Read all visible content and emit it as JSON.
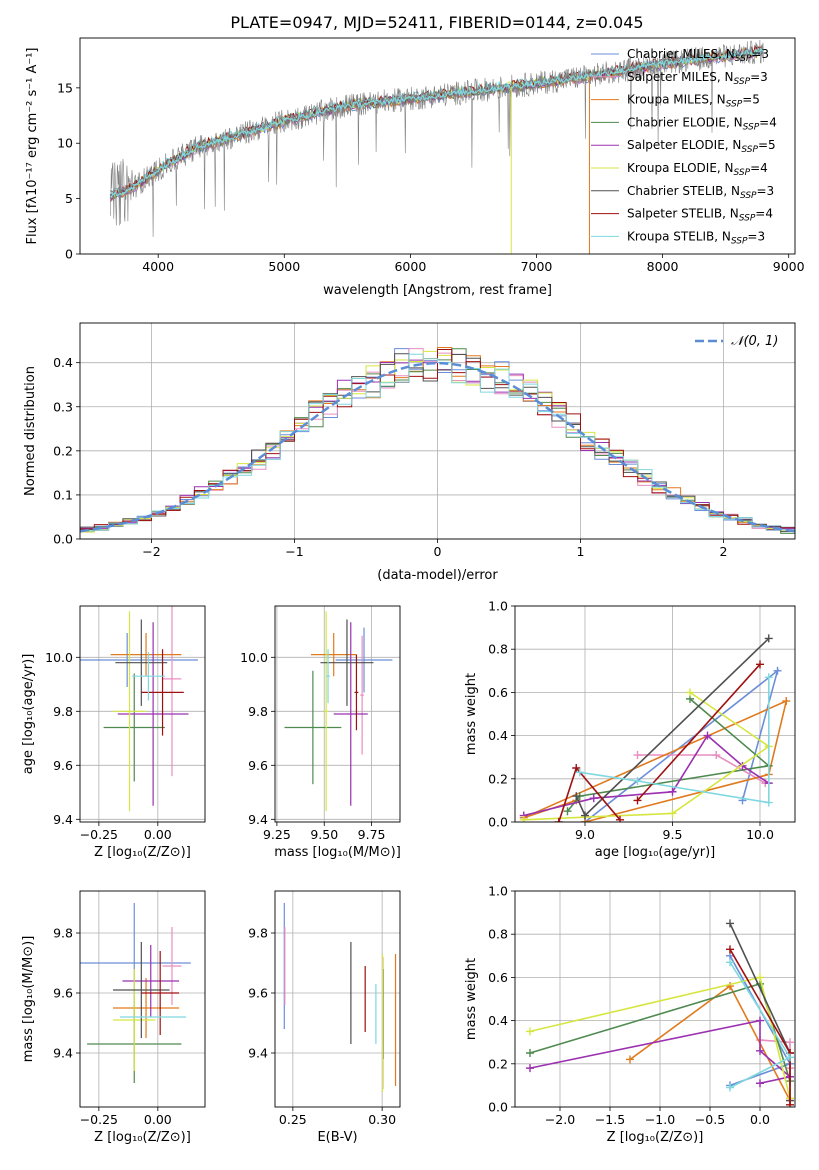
{
  "figure_title": "PLATE=0947, MJD=52411, FIBERID=0144, z=0.045",
  "chart_data": [
    {
      "id": "spectrum",
      "type": "line",
      "xlabel": "wavelength [Angstrom, rest frame]",
      "ylabel": "Flux [fλ10⁻¹⁷ erg cm⁻² s⁻¹ A⁻¹]",
      "xlim": [
        3380,
        9050
      ],
      "ylim": [
        0,
        19.5
      ],
      "xticks": [
        4000,
        5000,
        6000,
        7000,
        8000,
        9000
      ],
      "yticks": [
        0,
        5,
        10,
        15
      ],
      "grid": false,
      "legend_position": "top-right",
      "data_color": "#808080",
      "continuum": [
        [
          3620,
          5.2
        ],
        [
          3800,
          6.0
        ],
        [
          4000,
          7.6
        ],
        [
          4300,
          9.6
        ],
        [
          4600,
          10.6
        ],
        [
          5000,
          12.0
        ],
        [
          5500,
          13.4
        ],
        [
          6000,
          14.0
        ],
        [
          6500,
          14.7
        ],
        [
          7000,
          15.4
        ],
        [
          7500,
          16.2
        ],
        [
          8000,
          17.2
        ],
        [
          8500,
          17.9
        ],
        [
          8800,
          18.3
        ]
      ],
      "x_start": 3620,
      "x_end": 8800,
      "series": [
        {
          "name": "Chabrier MILES, N_SSP=3",
          "color": "#6a8fd8"
        },
        {
          "name": "Salpeter MILES, N_SSP=3",
          "color": "#e88ec0"
        },
        {
          "name": "Kroupa MILES, N_SSP=5",
          "color": "#e07a1e"
        },
        {
          "name": "Chabrier ELODIE, N_SSP=4",
          "color": "#4f8a4f"
        },
        {
          "name": "Salpeter ELODIE, N_SSP=5",
          "color": "#9b30b0"
        },
        {
          "name": "Kroupa ELODIE, N_SSP=4",
          "color": "#d6e640"
        },
        {
          "name": "Chabrier STELIB, N_SSP=3",
          "color": "#505050"
        },
        {
          "name": "Salpeter STELIB, N_SSP=4",
          "color": "#a01010"
        },
        {
          "name": "Kroupa STELIB, N_SSP=3",
          "color": "#7fd8e0"
        }
      ],
      "drop_lines": [
        {
          "series": 5,
          "x": 6800
        },
        {
          "series": 2,
          "x": 7420
        }
      ]
    },
    {
      "id": "residuals",
      "type": "line",
      "xlabel": "(data-model)/error",
      "ylabel": "Normed distribution",
      "xlim": [
        -2.5,
        2.5
      ],
      "ylim": [
        0,
        0.49
      ],
      "xticks": [
        -2,
        -1,
        0,
        1,
        2
      ],
      "yticks": [
        0.0,
        0.1,
        0.2,
        0.3,
        0.4
      ],
      "grid": true,
      "legend_position": "top-right",
      "legend": [
        "𝒩(0, 1)"
      ],
      "reference": {
        "type": "normal",
        "mean": 0,
        "sigma": 1,
        "color": "#5b8dd6"
      },
      "bin_width": 0.1
    },
    {
      "id": "age_vs_Z",
      "type": "scatter",
      "xlabel": "Z [log₁₀(Z/Z⊙)]",
      "ylabel": "age  [log₁₀(age/yr)]",
      "xlim": [
        -0.33,
        0.2
      ],
      "ylim": [
        9.39,
        10.19
      ],
      "xticks": [
        -0.25,
        0.0
      ],
      "xticklabels": [
        "−0.25",
        "0.00"
      ],
      "yticks": [
        9.4,
        9.6,
        9.8,
        10.0
      ],
      "grid": true,
      "points": [
        {
          "x": -0.13,
          "xerr": 0.3,
          "y": 9.99,
          "yerr": 0.1,
          "color": "#6a8fd8"
        },
        {
          "x": 0.06,
          "xerr": 0.04,
          "y": 9.92,
          "yerr": 0.36,
          "color": "#e88ec0"
        },
        {
          "x": -0.05,
          "xerr": 0.15,
          "y": 10.01,
          "yerr": 0.08,
          "color": "#e07a1e"
        },
        {
          "x": -0.1,
          "xerr": 0.13,
          "y": 9.74,
          "yerr": 0.2,
          "color": "#4f8a4f"
        },
        {
          "x": -0.02,
          "xerr": 0.15,
          "y": 9.79,
          "yerr": 0.34,
          "color": "#9b30b0"
        },
        {
          "x": -0.12,
          "xerr": 0.07,
          "y": 9.8,
          "yerr": 0.37,
          "color": "#d6e640"
        },
        {
          "x": -0.07,
          "xerr": 0.11,
          "y": 9.98,
          "yerr": 0.16,
          "color": "#505050"
        },
        {
          "x": 0.02,
          "xerr": 0.09,
          "y": 9.87,
          "yerr": 0.16,
          "color": "#a01010"
        },
        {
          "x": -0.04,
          "xerr": 0.07,
          "y": 9.93,
          "yerr": 0.09,
          "color": "#7fd8e0"
        }
      ]
    },
    {
      "id": "age_vs_mass",
      "type": "scatter",
      "xlabel": "mass [log₁₀(M/M⊙)]",
      "xlim": [
        9.24,
        9.9
      ],
      "ylim": [
        9.39,
        10.19
      ],
      "xticks": [
        9.25,
        9.5,
        9.75
      ],
      "xticklabels": [
        "9.25",
        "9.50",
        "9.75"
      ],
      "yticks": [
        9.4,
        9.6,
        9.8,
        10.0
      ],
      "grid": true,
      "points": [
        {
          "x": 9.71,
          "xerr": 0.15,
          "y": 9.99,
          "yerr": 0.12,
          "color": "#6a8fd8"
        },
        {
          "x": 9.7,
          "xerr": 0.01,
          "y": 9.86,
          "yerr": 0.22,
          "color": "#e88ec0"
        },
        {
          "x": 9.55,
          "xerr": 0.12,
          "y": 10.01,
          "yerr": 0.08,
          "color": "#e07a1e"
        },
        {
          "x": 9.44,
          "xerr": 0.15,
          "y": 9.74,
          "yerr": 0.21,
          "color": "#4f8a4f"
        },
        {
          "x": 9.64,
          "xerr": 0.09,
          "y": 9.79,
          "yerr": 0.34,
          "color": "#9b30b0"
        },
        {
          "x": 9.51,
          "xerr": 0.01,
          "y": 9.8,
          "yerr": 0.37,
          "color": "#d6e640"
        },
        {
          "x": 9.62,
          "xerr": 0.14,
          "y": 9.98,
          "yerr": 0.16,
          "color": "#505050"
        },
        {
          "x": 9.67,
          "xerr": 0.01,
          "y": 9.87,
          "yerr": 0.14,
          "color": "#a01010"
        },
        {
          "x": 9.52,
          "xerr": 0.01,
          "y": 9.93,
          "yerr": 0.1,
          "color": "#7fd8e0"
        }
      ]
    },
    {
      "id": "weight_vs_age",
      "type": "line",
      "xlabel": "age  [log₁₀(age/yr)]",
      "ylabel": "mass weight",
      "xlim": [
        8.6,
        10.2
      ],
      "ylim": [
        0,
        1.0
      ],
      "xticks": [
        9.0,
        9.5,
        10.0
      ],
      "yticks": [
        0.0,
        0.2,
        0.4,
        0.6,
        0.8,
        1.0
      ],
      "grid": true,
      "series": [
        {
          "color": "#6a8fd8",
          "points": [
            [
              9.9,
              0.1
            ],
            [
              10.1,
              0.7
            ],
            [
              9.0,
              0.0
            ]
          ]
        },
        {
          "color": "#e88ec0",
          "points": [
            [
              9.3,
              0.31
            ],
            [
              9.75,
              0.31
            ],
            [
              10.03,
              0.18
            ]
          ]
        },
        {
          "color": "#e07a1e",
          "points": [
            [
              9.0,
              0.0
            ],
            [
              10.05,
              0.22
            ],
            [
              10.15,
              0.56
            ],
            [
              8.65,
              0.02
            ],
            [
              8.95,
              0.1
            ]
          ]
        },
        {
          "color": "#4f8a4f",
          "points": [
            [
              9.6,
              0.57
            ],
            [
              10.05,
              0.26
            ],
            [
              8.97,
              0.12
            ],
            [
              8.9,
              0.05
            ]
          ]
        },
        {
          "color": "#9b30b0",
          "points": [
            [
              8.65,
              0.03
            ],
            [
              9.05,
              0.11
            ],
            [
              9.5,
              0.14
            ],
            [
              9.7,
              0.4
            ],
            [
              9.9,
              0.26
            ],
            [
              10.05,
              0.18
            ]
          ]
        },
        {
          "color": "#d6e640",
          "points": [
            [
              9.6,
              0.6
            ],
            [
              10.05,
              0.35
            ],
            [
              9.5,
              0.04
            ],
            [
              8.65,
              0.01
            ]
          ]
        },
        {
          "color": "#505050",
          "points": [
            [
              10.05,
              0.85
            ],
            [
              9.0,
              0.03
            ],
            [
              8.95,
              0.12
            ]
          ]
        },
        {
          "color": "#a01010",
          "points": [
            [
              9.2,
              0.01
            ],
            [
              8.95,
              0.25
            ],
            [
              8.85,
              0.0
            ]
          ],
          "extra": [
            [
              9.3,
              0.1
            ],
            [
              10.0,
              0.73
            ]
          ]
        },
        {
          "color": "#7fd8e0",
          "points": [
            [
              8.97,
              0.23
            ],
            [
              9.3,
              0.19
            ],
            [
              10.05,
              0.09
            ],
            [
              10.05,
              0.67
            ]
          ]
        }
      ]
    },
    {
      "id": "mass_vs_Z",
      "type": "scatter",
      "xlabel": "Z [log₁₀(Z/Z⊙)]",
      "ylabel": "mass [log₁₀(M/M⊙)]",
      "xlim": [
        -0.33,
        0.2
      ],
      "ylim": [
        9.22,
        9.94
      ],
      "xticks": [
        -0.25,
        0.0
      ],
      "xticklabels": [
        "−0.25",
        "0.00"
      ],
      "yticks": [
        9.4,
        9.6,
        9.8
      ],
      "grid": true,
      "points": [
        {
          "x": -0.1,
          "xerr": 0.24,
          "y": 9.7,
          "yerr": 0.2,
          "color": "#6a8fd8"
        },
        {
          "x": 0.06,
          "xerr": 0.04,
          "y": 9.69,
          "yerr": 0.13,
          "color": "#e88ec0"
        },
        {
          "x": -0.05,
          "xerr": 0.14,
          "y": 9.55,
          "yerr": 0.1,
          "color": "#e07a1e"
        },
        {
          "x": -0.1,
          "xerr": 0.2,
          "y": 9.43,
          "yerr": 0.13,
          "color": "#4f8a4f"
        },
        {
          "x": -0.03,
          "xerr": 0.12,
          "y": 9.64,
          "yerr": 0.12,
          "color": "#9b30b0"
        },
        {
          "x": -0.1,
          "xerr": 0.09,
          "y": 9.51,
          "yerr": 0.17,
          "color": "#d6e640"
        },
        {
          "x": -0.07,
          "xerr": 0.12,
          "y": 9.61,
          "yerr": 0.16,
          "color": "#505050"
        },
        {
          "x": 0.01,
          "xerr": 0.08,
          "y": 9.6,
          "yerr": 0.14,
          "color": "#a01010"
        },
        {
          "x": -0.02,
          "xerr": 0.14,
          "y": 9.52,
          "yerr": 0.0,
          "color": "#7fd8e0"
        }
      ]
    },
    {
      "id": "mass_vs_EBV",
      "type": "scatter",
      "xlabel": "E(B-V)",
      "xlim": [
        0.24,
        0.31
      ],
      "ylim": [
        9.22,
        9.94
      ],
      "xticks": [
        0.25,
        0.3
      ],
      "xticklabels": [
        "0.25",
        "0.30"
      ],
      "yticks": [
        9.4,
        9.6,
        9.8
      ],
      "grid": true,
      "points": [
        {
          "x": 0.2452,
          "y": 9.69,
          "yerr": 0.21,
          "color": "#6a8fd8"
        },
        {
          "x": 0.2455,
          "y": 9.69,
          "yerr": 0.13,
          "color": "#e88ec0"
        },
        {
          "x": 0.3075,
          "y": 9.51,
          "yerr": 0.22,
          "color": "#e07a1e"
        },
        {
          "x": 0.3005,
          "y": 9.53,
          "yerr": 0.15,
          "color": "#4f8a4f"
        },
        {
          "x": 0.3003,
          "y": 9.5,
          "yerr": 0.22,
          "color": "#9b30b0"
        },
        {
          "x": 0.3002,
          "y": 9.5,
          "yerr": 0.23,
          "color": "#d6e640"
        },
        {
          "x": 0.2825,
          "y": 9.6,
          "yerr": 0.17,
          "color": "#505050"
        },
        {
          "x": 0.2905,
          "y": 9.58,
          "yerr": 0.11,
          "color": "#a01010"
        },
        {
          "x": 0.2965,
          "y": 9.53,
          "yerr": 0.1,
          "color": "#7fd8e0"
        }
      ]
    },
    {
      "id": "weight_vs_Z",
      "type": "line",
      "xlabel": "Z [log₁₀(Z/Z⊙)]",
      "ylabel": "mass weight",
      "xlim": [
        -2.45,
        0.35
      ],
      "ylim": [
        0,
        1.0
      ],
      "xticks": [
        -2.0,
        -1.5,
        -1.0,
        -0.5,
        0.0
      ],
      "xticklabels": [
        "−2.0",
        "−1.5",
        "−1.0",
        "−0.5",
        "0.0"
      ],
      "yticks": [
        0.0,
        0.2,
        0.4,
        0.6,
        0.8,
        1.0
      ],
      "grid": true,
      "series": [
        {
          "color": "#6a8fd8",
          "points": [
            [
              -0.3,
              0.1
            ],
            [
              0.3,
              0.2
            ],
            [
              -0.3,
              0.7
            ]
          ]
        },
        {
          "color": "#e88ec0",
          "points": [
            [
              0.0,
              0.31
            ],
            [
              0.3,
              0.3
            ],
            [
              0.3,
              0.18
            ]
          ]
        },
        {
          "color": "#e07a1e",
          "points": [
            [
              -1.3,
              0.22
            ],
            [
              -0.3,
              0.56
            ],
            [
              0.3,
              0.03
            ]
          ]
        },
        {
          "color": "#4f8a4f",
          "points": [
            [
              -2.3,
              0.25
            ],
            [
              0.0,
              0.57
            ],
            [
              0.3,
              0.12
            ]
          ]
        },
        {
          "color": "#9b30b0",
          "points": [
            [
              -2.3,
              0.18
            ],
            [
              0.0,
              0.4
            ],
            [
              0.0,
              0.26
            ],
            [
              0.3,
              0.14
            ],
            [
              0.0,
              0.11
            ]
          ]
        },
        {
          "color": "#d6e640",
          "points": [
            [
              -2.3,
              0.35
            ],
            [
              0.0,
              0.6
            ],
            [
              0.3,
              0.04
            ]
          ]
        },
        {
          "color": "#505050",
          "points": [
            [
              -0.3,
              0.85
            ],
            [
              0.3,
              0.25
            ],
            [
              0.3,
              0.03
            ]
          ]
        },
        {
          "color": "#a01010",
          "points": [
            [
              -0.3,
              0.73
            ],
            [
              0.3,
              0.25
            ],
            [
              0.3,
              0.01
            ]
          ]
        },
        {
          "color": "#7fd8e0",
          "points": [
            [
              -0.3,
              0.09
            ],
            [
              0.3,
              0.23
            ],
            [
              -0.3,
              0.67
            ]
          ]
        }
      ]
    }
  ]
}
